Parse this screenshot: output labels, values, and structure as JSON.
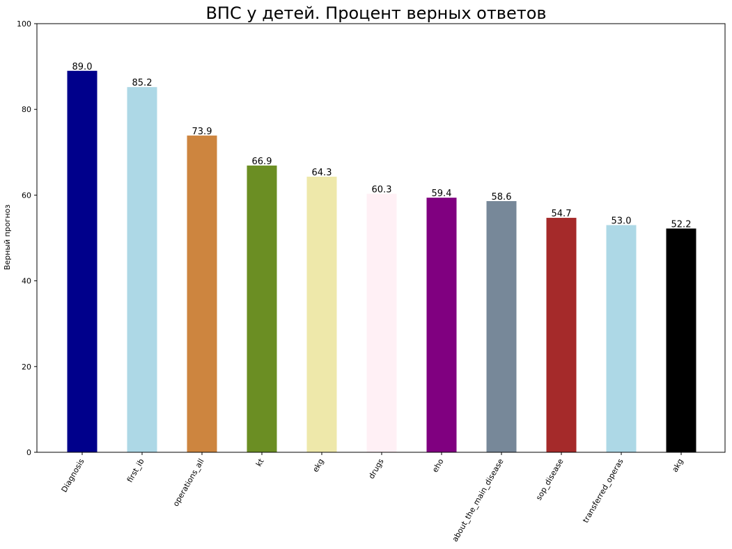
{
  "chart_data": {
    "type": "bar",
    "title": "ВПС у детей. Процент верных ответов",
    "xlabel": "",
    "ylabel": "Верный прогноз",
    "ylim": [
      0,
      100
    ],
    "yticks": [
      0,
      20,
      40,
      60,
      80,
      100
    ],
    "grid": false,
    "categories": [
      "Diagnosis",
      "first_ib",
      "operations_all",
      "kt",
      "ekg",
      "drugs",
      "eho",
      "about_the_main_disease",
      "sop_disease",
      "transferred_operas",
      "akg"
    ],
    "values": [
      89.0,
      85.2,
      73.9,
      66.9,
      64.3,
      60.3,
      59.4,
      58.6,
      54.7,
      53.0,
      52.2
    ],
    "data_labels": [
      "89.0",
      "85.2",
      "73.9",
      "66.9",
      "64.3",
      "60.3",
      "59.4",
      "58.6",
      "54.7",
      "53.0",
      "52.2"
    ],
    "colors": [
      "#00008b",
      "#add8e6",
      "#cd853f",
      "#6b8e23",
      "#eee8aa",
      "#fff0f5",
      "#800080",
      "#778899",
      "#a52a2a",
      "#add8e6",
      "#000000"
    ]
  }
}
